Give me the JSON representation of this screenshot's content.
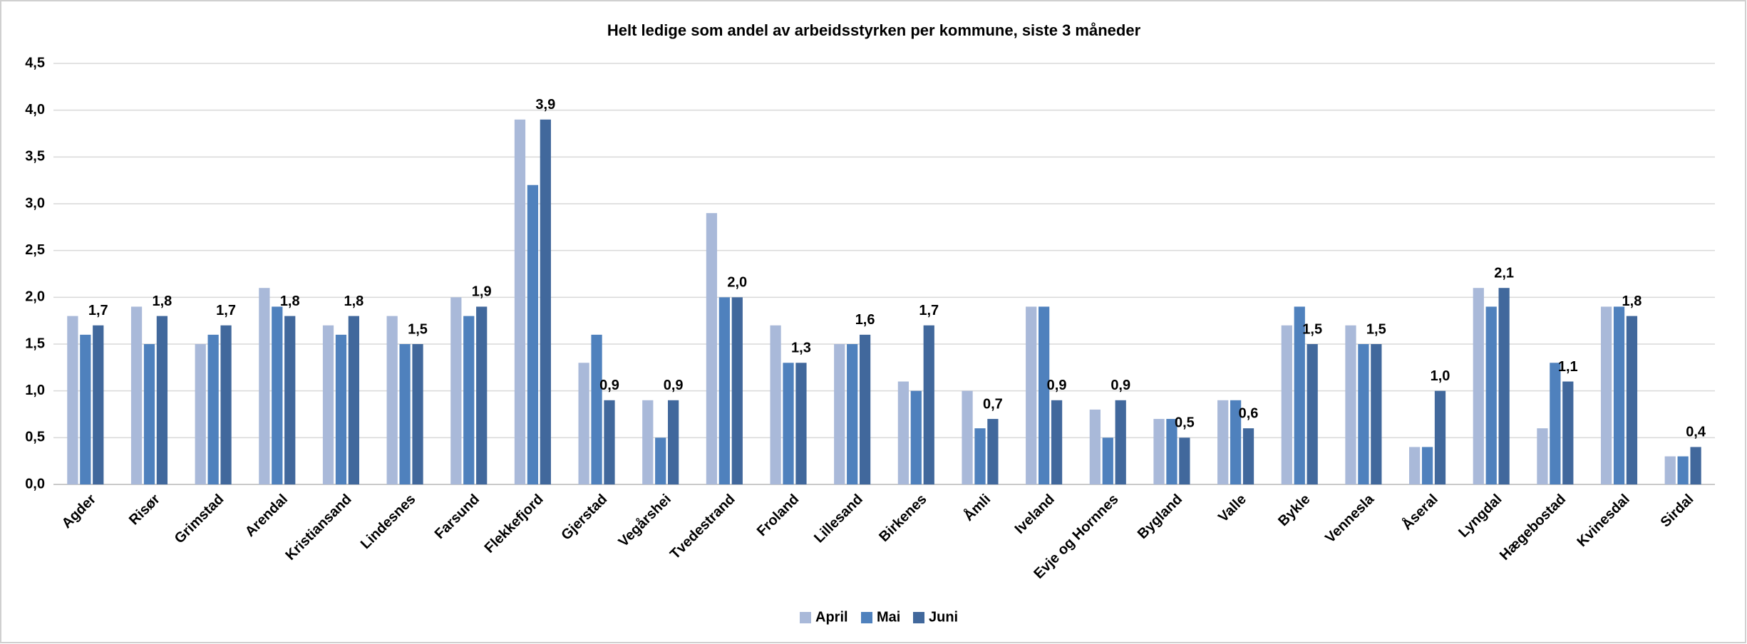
{
  "chart_data": {
    "type": "bar",
    "title": "Helt ledige som andel av arbeidsstyrken per kommune, siste 3 måneder",
    "categories": [
      "Agder",
      "Risør",
      "Grimstad",
      "Arendal",
      "Kristiansand",
      "Lindesnes",
      "Farsund",
      "Flekkefjord",
      "Gjerstad",
      "Vegårshei",
      "Tvedestrand",
      "Froland",
      "Lillesand",
      "Birkenes",
      "Åmli",
      "Iveland",
      "Evje og Hornnes",
      "Bygland",
      "Valle",
      "Bykle",
      "Vennesla",
      "Åseral",
      "Lyngdal",
      "Hægebostad",
      "Kvinesdal",
      "Sirdal"
    ],
    "series": [
      {
        "name": "April",
        "color": "#a9b9d9",
        "values": [
          1.8,
          1.9,
          1.5,
          2.1,
          1.7,
          1.8,
          2.0,
          3.9,
          1.3,
          0.9,
          2.9,
          1.7,
          1.5,
          1.1,
          1.0,
          1.9,
          0.8,
          0.7,
          0.9,
          1.7,
          1.7,
          0.4,
          2.1,
          0.6,
          1.9,
          0.3
        ]
      },
      {
        "name": "Mai",
        "color": "#4f81bd",
        "values": [
          1.6,
          1.5,
          1.6,
          1.9,
          1.6,
          1.5,
          1.8,
          3.2,
          1.6,
          0.5,
          2.0,
          1.3,
          1.5,
          1.0,
          0.6,
          1.9,
          0.5,
          0.7,
          0.9,
          1.9,
          1.5,
          0.4,
          1.9,
          1.3,
          1.9,
          0.3
        ]
      },
      {
        "name": "Juni",
        "color": "#41689c",
        "values": [
          1.7,
          1.8,
          1.7,
          1.8,
          1.8,
          1.5,
          1.9,
          3.9,
          0.9,
          0.9,
          2.0,
          1.3,
          1.6,
          1.7,
          0.7,
          0.9,
          0.9,
          0.5,
          0.6,
          1.5,
          1.5,
          1.0,
          2.1,
          1.1,
          1.8,
          0.4
        ],
        "value_labels": [
          "1,7",
          "1,8",
          "1,7",
          "1,8",
          "1,8",
          "1,5",
          "1,9",
          "3,9",
          "0,9",
          "0,9",
          "2,0",
          "1,3",
          "1,6",
          "1,7",
          "0,7",
          "0,9",
          "0,9",
          "0,5",
          "0,6",
          "1,5",
          "1,5",
          "1,0",
          "2,1",
          "1,1",
          "1,8",
          "0,4"
        ]
      }
    ],
    "ylim": [
      0,
      4.5
    ],
    "yticks": [
      {
        "value": 0,
        "label": "0,0"
      },
      {
        "value": 0.5,
        "label": "0,5"
      },
      {
        "value": 1,
        "label": "1,0"
      },
      {
        "value": 1.5,
        "label": "1,5"
      },
      {
        "value": 2,
        "label": "2,0"
      },
      {
        "value": 2.5,
        "label": "2,5"
      },
      {
        "value": 3,
        "label": "3,0"
      },
      {
        "value": 3.5,
        "label": "3,5"
      },
      {
        "value": 4,
        "label": "4,0"
      },
      {
        "value": 4.5,
        "label": "4,5"
      }
    ],
    "grid": true,
    "legend": "bottom"
  }
}
